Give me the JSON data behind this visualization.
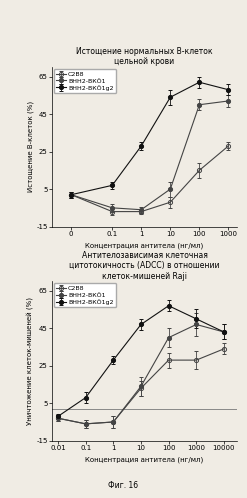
{
  "chart1": {
    "title": "Истощение нормальных В-клеток\nцельной крови",
    "xlabel": "Концентрация антитела (нг/мл)",
    "ylabel": "Истощение В-клеток (%)",
    "ylim": [
      -15,
      70
    ],
    "yticks": [
      -15,
      5,
      25,
      45,
      65
    ],
    "ytick_labels": [
      "-15",
      "5",
      "25",
      "45",
      "65"
    ],
    "xticks": [
      0,
      0.1,
      1,
      10,
      100,
      1000
    ],
    "xtick_labels": [
      "0",
      "0.1",
      "1",
      "10",
      "100",
      "1000"
    ],
    "series": [
      {
        "label": "C2B8",
        "marker": "o",
        "fillstyle": "none",
        "color": "#444444",
        "x": [
          0,
          0.1,
          1,
          10,
          100,
          1000
        ],
        "y": [
          2,
          -7,
          -7,
          -2,
          15,
          28
        ],
        "yerr": [
          1.5,
          2,
          1.5,
          3,
          4,
          2
        ]
      },
      {
        "label": "ВНН2-ВКÖ1",
        "marker": "o",
        "fillstyle": "full",
        "color": "#444444",
        "x": [
          0,
          0.1,
          1,
          10,
          100,
          1000
        ],
        "y": [
          2,
          -5,
          -6,
          5,
          50,
          52
        ],
        "yerr": [
          1.5,
          2,
          1.5,
          4,
          3,
          3
        ]
      },
      {
        "label": "ВНН2-ВКÖ1g2",
        "marker": "o",
        "fillstyle": "full",
        "color": "#111111",
        "x": [
          0,
          0.1,
          1,
          10,
          100,
          1000
        ],
        "y": [
          2,
          7,
          28,
          54,
          62,
          58
        ],
        "yerr": [
          1.5,
          2,
          2,
          4,
          3,
          3
        ]
      }
    ]
  },
  "chart2": {
    "title": "Антителозависимая клеточная\nцитотокичность (ADCC) в отношении\nклеток-мишеней Raji",
    "xlabel": "Концентрация антитела (нг/мл)",
    "ylabel": "Уничтожение клеток-мишеней (%)",
    "ylim": [
      -15,
      70
    ],
    "yticks": [
      -15,
      5,
      25,
      45,
      65
    ],
    "ytick_labels": [
      "-15",
      "5",
      "25",
      "45",
      "65"
    ],
    "xticks": [
      0.01,
      0.1,
      1,
      10,
      100,
      1000,
      10000
    ],
    "xtick_labels": [
      "0.01",
      "0.1",
      "1",
      "10",
      "100",
      "1000",
      "10000"
    ],
    "hline_y": 2,
    "hline_color": "#888888",
    "series": [
      {
        "label": "C2B8",
        "marker": "o",
        "fillstyle": "none",
        "color": "#444444",
        "x": [
          0.01,
          0.1,
          1,
          10,
          100,
          1000,
          10000
        ],
        "y": [
          -3,
          -6,
          -5,
          13,
          28,
          28,
          34
        ],
        "yerr": [
          1.5,
          2,
          3,
          4,
          4,
          5,
          3
        ]
      },
      {
        "label": "ВНН2-ВКÖ1",
        "marker": "o",
        "fillstyle": "full",
        "color": "#444444",
        "x": [
          0.01,
          0.1,
          1,
          10,
          100,
          1000,
          10000
        ],
        "y": [
          -3,
          -6,
          -5,
          14,
          40,
          47,
          43
        ],
        "yerr": [
          1.5,
          2,
          3,
          5,
          5,
          6,
          4
        ]
      },
      {
        "label": "ВНН2-ВКÖ1g2",
        "marker": "o",
        "fillstyle": "full",
        "color": "#111111",
        "x": [
          0.01,
          0.1,
          1,
          10,
          100,
          1000,
          10000
        ],
        "y": [
          -2,
          8,
          28,
          47,
          57,
          50,
          43
        ],
        "yerr": [
          1.5,
          3,
          2,
          3,
          3,
          5,
          4
        ]
      }
    ]
  },
  "fig_label": "Фиг. 16",
  "bg_color": "#f0ece4",
  "font_size": 5.0,
  "title_font_size": 5.5,
  "legend_font_size": 4.5
}
